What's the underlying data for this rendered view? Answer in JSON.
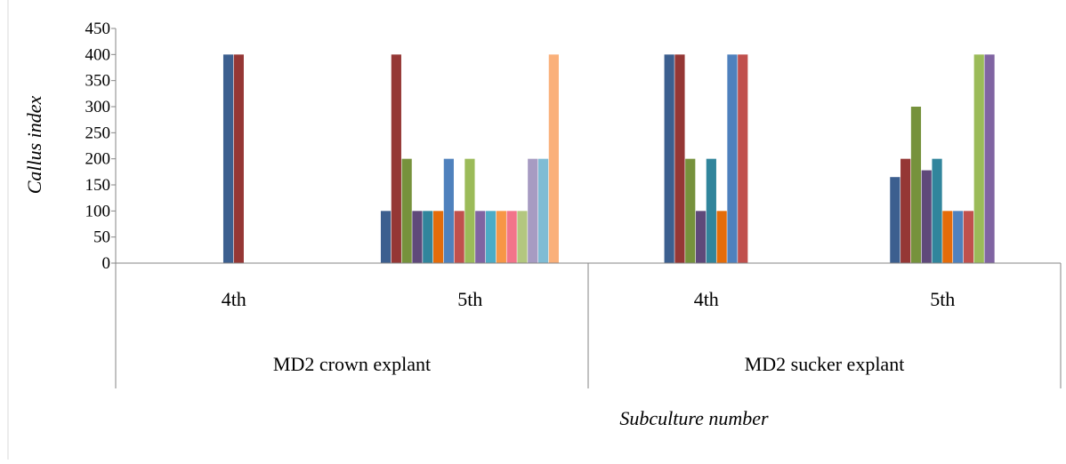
{
  "chart_data": {
    "type": "bar",
    "title": "",
    "ylabel": "Callus index",
    "xlabel": "Subculture number",
    "ylim": [
      0,
      450
    ],
    "yticks": [
      0,
      50,
      100,
      150,
      200,
      250,
      300,
      350,
      400,
      450
    ],
    "ytick_labels": [
      "0",
      "50",
      "100",
      "150",
      "200",
      "250",
      "300",
      "350",
      "400",
      "450"
    ],
    "grid": false,
    "legend": "none",
    "groups": [
      {
        "label": "MD2 crown explant",
        "categories": [
          {
            "label": "4th",
            "values": [
              400,
              400
            ]
          },
          {
            "label": "5th",
            "values": [
              100,
              400,
              200,
              100,
              100,
              100,
              200,
              100,
              200,
              100,
              100,
              100,
              100,
              100,
              200,
              200,
              400
            ]
          }
        ]
      },
      {
        "label": "MD2 sucker explant",
        "categories": [
          {
            "label": "4th",
            "values": [
              400,
              400,
              200,
              100,
              200,
              100,
              400,
              400
            ]
          },
          {
            "label": "5th",
            "values": [
              165,
              200,
              300,
              178,
              200,
              100,
              100,
              100,
              400,
              400
            ]
          }
        ]
      }
    ],
    "colors": {
      "MD2 crown explant|4th": [
        "#3c5f8f",
        "#953735"
      ],
      "MD2 crown explant|5th": [
        "#3c5f8f",
        "#953735",
        "#76923c",
        "#5f497a",
        "#31859c",
        "#e46c0a",
        "#4f81bd",
        "#c0504d",
        "#9bbb59",
        "#8064a2",
        "#4bacc6",
        "#f79646",
        "#f2748a",
        "#b3c77f",
        "#a79bc2",
        "#7fbcd4",
        "#fab07a"
      ],
      "MD2 sucker explant|4th": [
        "#3c5f8f",
        "#953735",
        "#76923c",
        "#5f497a",
        "#31859c",
        "#e46c0a",
        "#4f81bd",
        "#c0504d"
      ],
      "MD2 sucker explant|5th": [
        "#3c5f8f",
        "#953735",
        "#76923c",
        "#5f497a",
        "#31859c",
        "#e46c0a",
        "#4f81bd",
        "#c0504d",
        "#9bbb59",
        "#8064a2"
      ]
    }
  }
}
